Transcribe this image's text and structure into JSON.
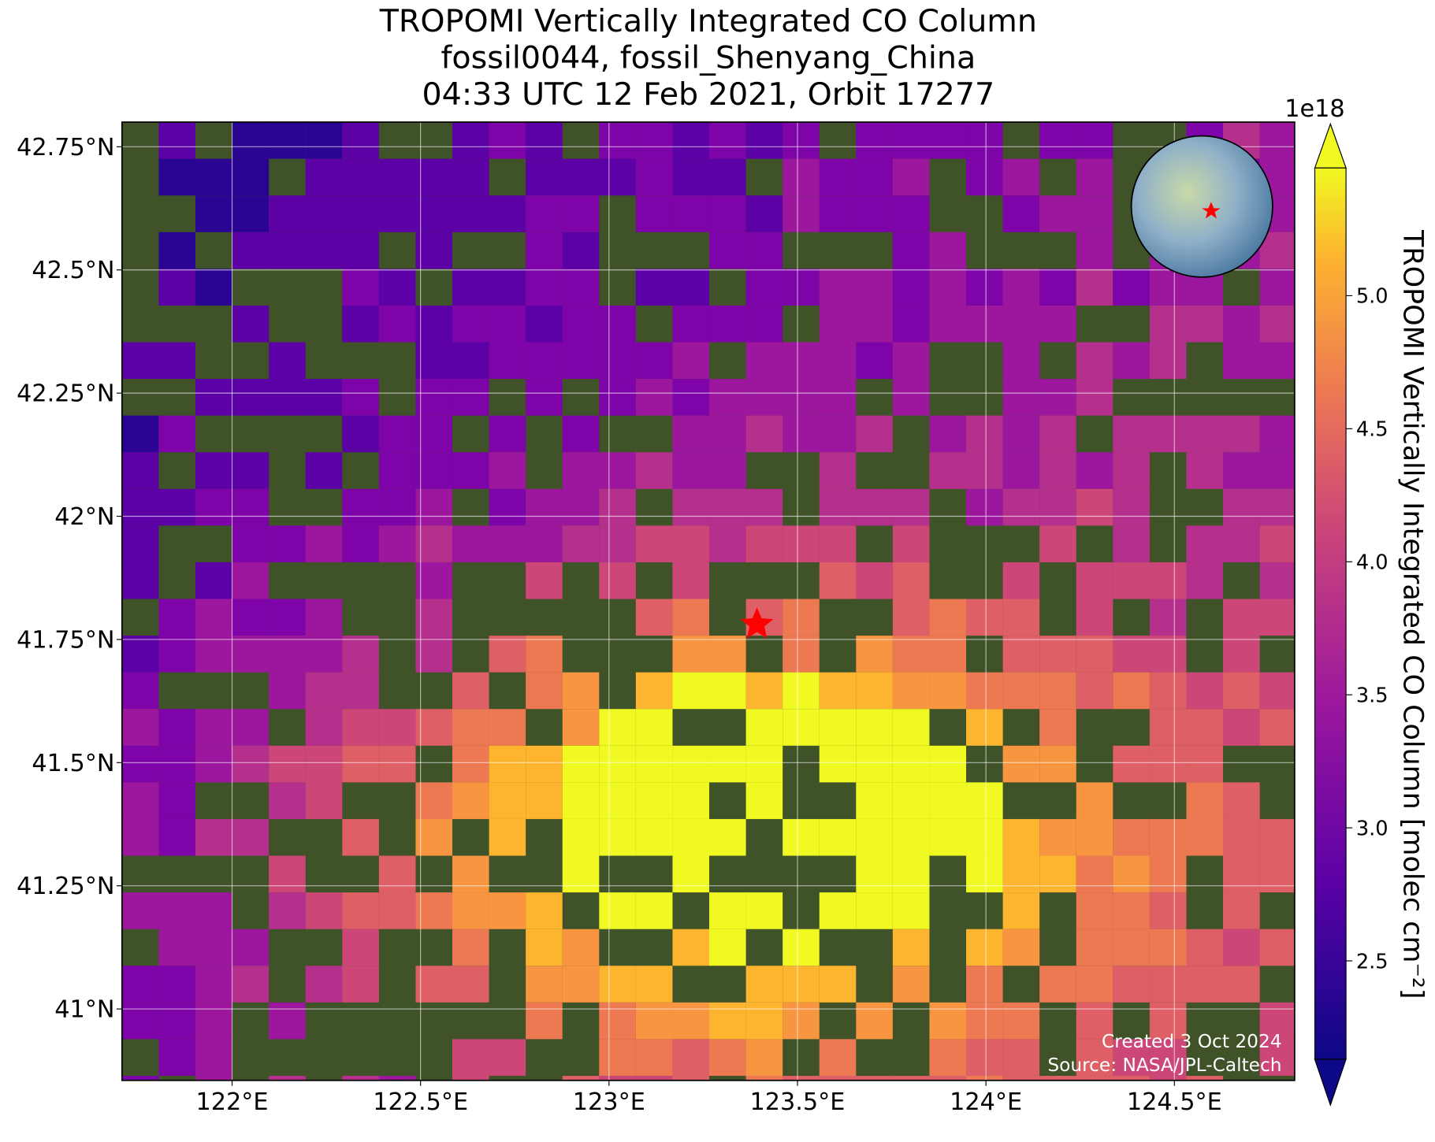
{
  "map": {
    "title_lines": [
      "TROPOMI Vertically Integrated CO Column",
      "fossil0044, fossil_Shenyang_China",
      "04:33 UTC 12 Feb 2021, Orbit 17277"
    ],
    "xlim": [
      121.708,
      124.819
    ],
    "ylim": [
      40.855,
      42.8
    ],
    "xticks": [
      {
        "value": 122,
        "label": "122°E"
      },
      {
        "value": 122.5,
        "label": "122.5°E"
      },
      {
        "value": 123,
        "label": "123°E"
      },
      {
        "value": 123.5,
        "label": "123.5°E"
      },
      {
        "value": 124,
        "label": "124°E"
      },
      {
        "value": 124.5,
        "label": "124.5°E"
      }
    ],
    "yticks": [
      {
        "value": 41,
        "label": "41°N"
      },
      {
        "value": 41.25,
        "label": "41.25°N"
      },
      {
        "value": 41.5,
        "label": "41.5°N"
      },
      {
        "value": 41.75,
        "label": "41.75°N"
      },
      {
        "value": 42,
        "label": "42°N"
      },
      {
        "value": 42.25,
        "label": "42.25°N"
      },
      {
        "value": 42.5,
        "label": "42.5°N"
      },
      {
        "value": 42.75,
        "label": "42.75°N"
      }
    ],
    "colorbar": {
      "label": "TROPOMI Vertically Integrated CO Column [molec cm⁻²]",
      "offset_label": "1e18",
      "lim": [
        2.13,
        5.48
      ],
      "ticks": [
        2.5,
        {
          "value": 3,
          "label": "3.0"
        },
        3.5,
        {
          "value": 4,
          "label": "4.0"
        },
        4.5,
        {
          "value": 5,
          "label": "5.0"
        }
      ]
    },
    "annotations": [
      "Created 3 Oct 2024",
      "Source: NASA/JPL-Caltech"
    ]
  }
}
